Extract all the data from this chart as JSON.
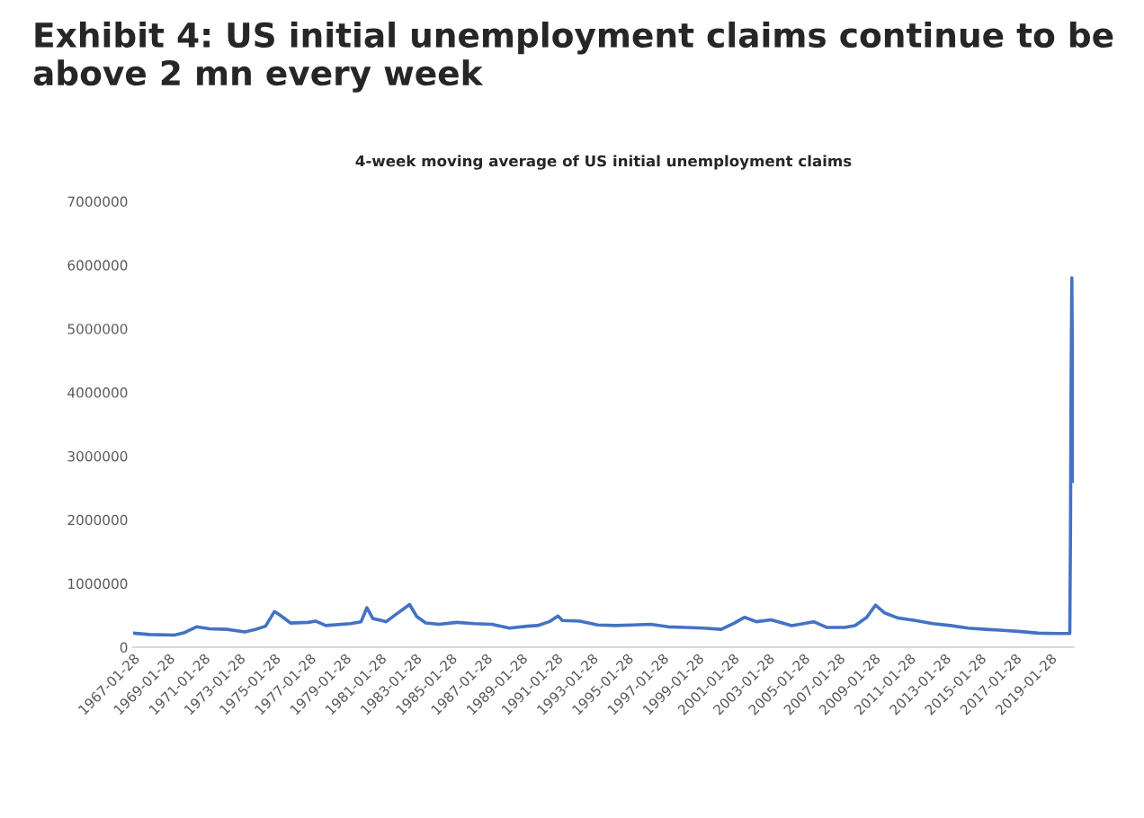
{
  "chart_data": {
    "type": "line",
    "title": "Exhibit 4: US initial unemployment claims continue to be above 2 mn every week",
    "subtitle": "4-week moving average of US initial unemployment claims",
    "x": [
      "1967-01-28",
      "1968-01",
      "1969-06",
      "1970-01",
      "1970-09",
      "1971-06",
      "1972-06",
      "1973-06",
      "1974-01",
      "1974-08",
      "1975-02",
      "1975-06",
      "1976-01",
      "1977-01",
      "1977-06",
      "1978-01",
      "1979-06",
      "1980-01",
      "1980-05",
      "1980-09",
      "1981-03",
      "1981-06",
      "1982-01",
      "1982-10",
      "1983-03",
      "1983-09",
      "1984-06",
      "1985-06",
      "1986-06",
      "1987-06",
      "1988-06",
      "1989-06",
      "1990-01",
      "1990-09",
      "1991-03",
      "1991-06",
      "1992-06",
      "1993-06",
      "1994-06",
      "1995-06",
      "1996-06",
      "1997-06",
      "1998-06",
      "1999-06",
      "2000-06",
      "2001-03",
      "2001-10",
      "2002-06",
      "2003-04",
      "2004-06",
      "2005-09",
      "2006-06",
      "2007-06",
      "2008-01",
      "2008-09",
      "2009-03",
      "2009-09",
      "2010-06",
      "2011-06",
      "2012-06",
      "2013-06",
      "2014-06",
      "2015-06",
      "2016-06",
      "2017-06",
      "2018-06",
      "2019-06",
      "2020-03-07",
      "2020-03-21",
      "2020-04-04",
      "2020-04-18",
      "2020-05-02",
      "2020-05-16",
      "2020-05-30"
    ],
    "series": [
      {
        "color": "#4472c4",
        "values": [
          220000,
          200000,
          190000,
          230000,
          320000,
          290000,
          280000,
          240000,
          280000,
          330000,
          560000,
          500000,
          380000,
          390000,
          410000,
          340000,
          370000,
          400000,
          620000,
          450000,
          420000,
          400000,
          520000,
          670000,
          480000,
          380000,
          360000,
          390000,
          370000,
          360000,
          300000,
          330000,
          340000,
          400000,
          490000,
          420000,
          410000,
          350000,
          340000,
          350000,
          360000,
          320000,
          310000,
          300000,
          280000,
          380000,
          470000,
          400000,
          430000,
          340000,
          400000,
          310000,
          310000,
          340000,
          470000,
          660000,
          540000,
          460000,
          420000,
          370000,
          340000,
          300000,
          280000,
          265000,
          245000,
          220000,
          215000,
          215000,
          1770000,
          4270000,
          5800000,
          4200000,
          3000000,
          2600000
        ]
      }
    ],
    "ylim": [
      0,
      7000000
    ],
    "yticks": [
      0,
      1000000,
      2000000,
      3000000,
      4000000,
      5000000,
      6000000,
      7000000
    ],
    "xlim": [
      "1967-01-28",
      "2020-05-30"
    ],
    "xticks": [
      "1967-01-28",
      "1969-01-28",
      "1971-01-28",
      "1973-01-28",
      "1975-01-28",
      "1977-01-28",
      "1979-01-28",
      "1981-01-28",
      "1983-01-28",
      "1985-01-28",
      "1987-01-28",
      "1989-01-28",
      "1991-01-28",
      "1993-01-28",
      "1995-01-28",
      "1997-01-28",
      "1999-01-28",
      "2001-01-28",
      "2003-01-28",
      "2005-01-28",
      "2007-01-28",
      "2009-01-28",
      "2011-01-28",
      "2013-01-28",
      "2015-01-28",
      "2017-01-28",
      "2019-01-28"
    ],
    "grid": false,
    "legend": false,
    "marker": "none",
    "line_style": "solid"
  }
}
